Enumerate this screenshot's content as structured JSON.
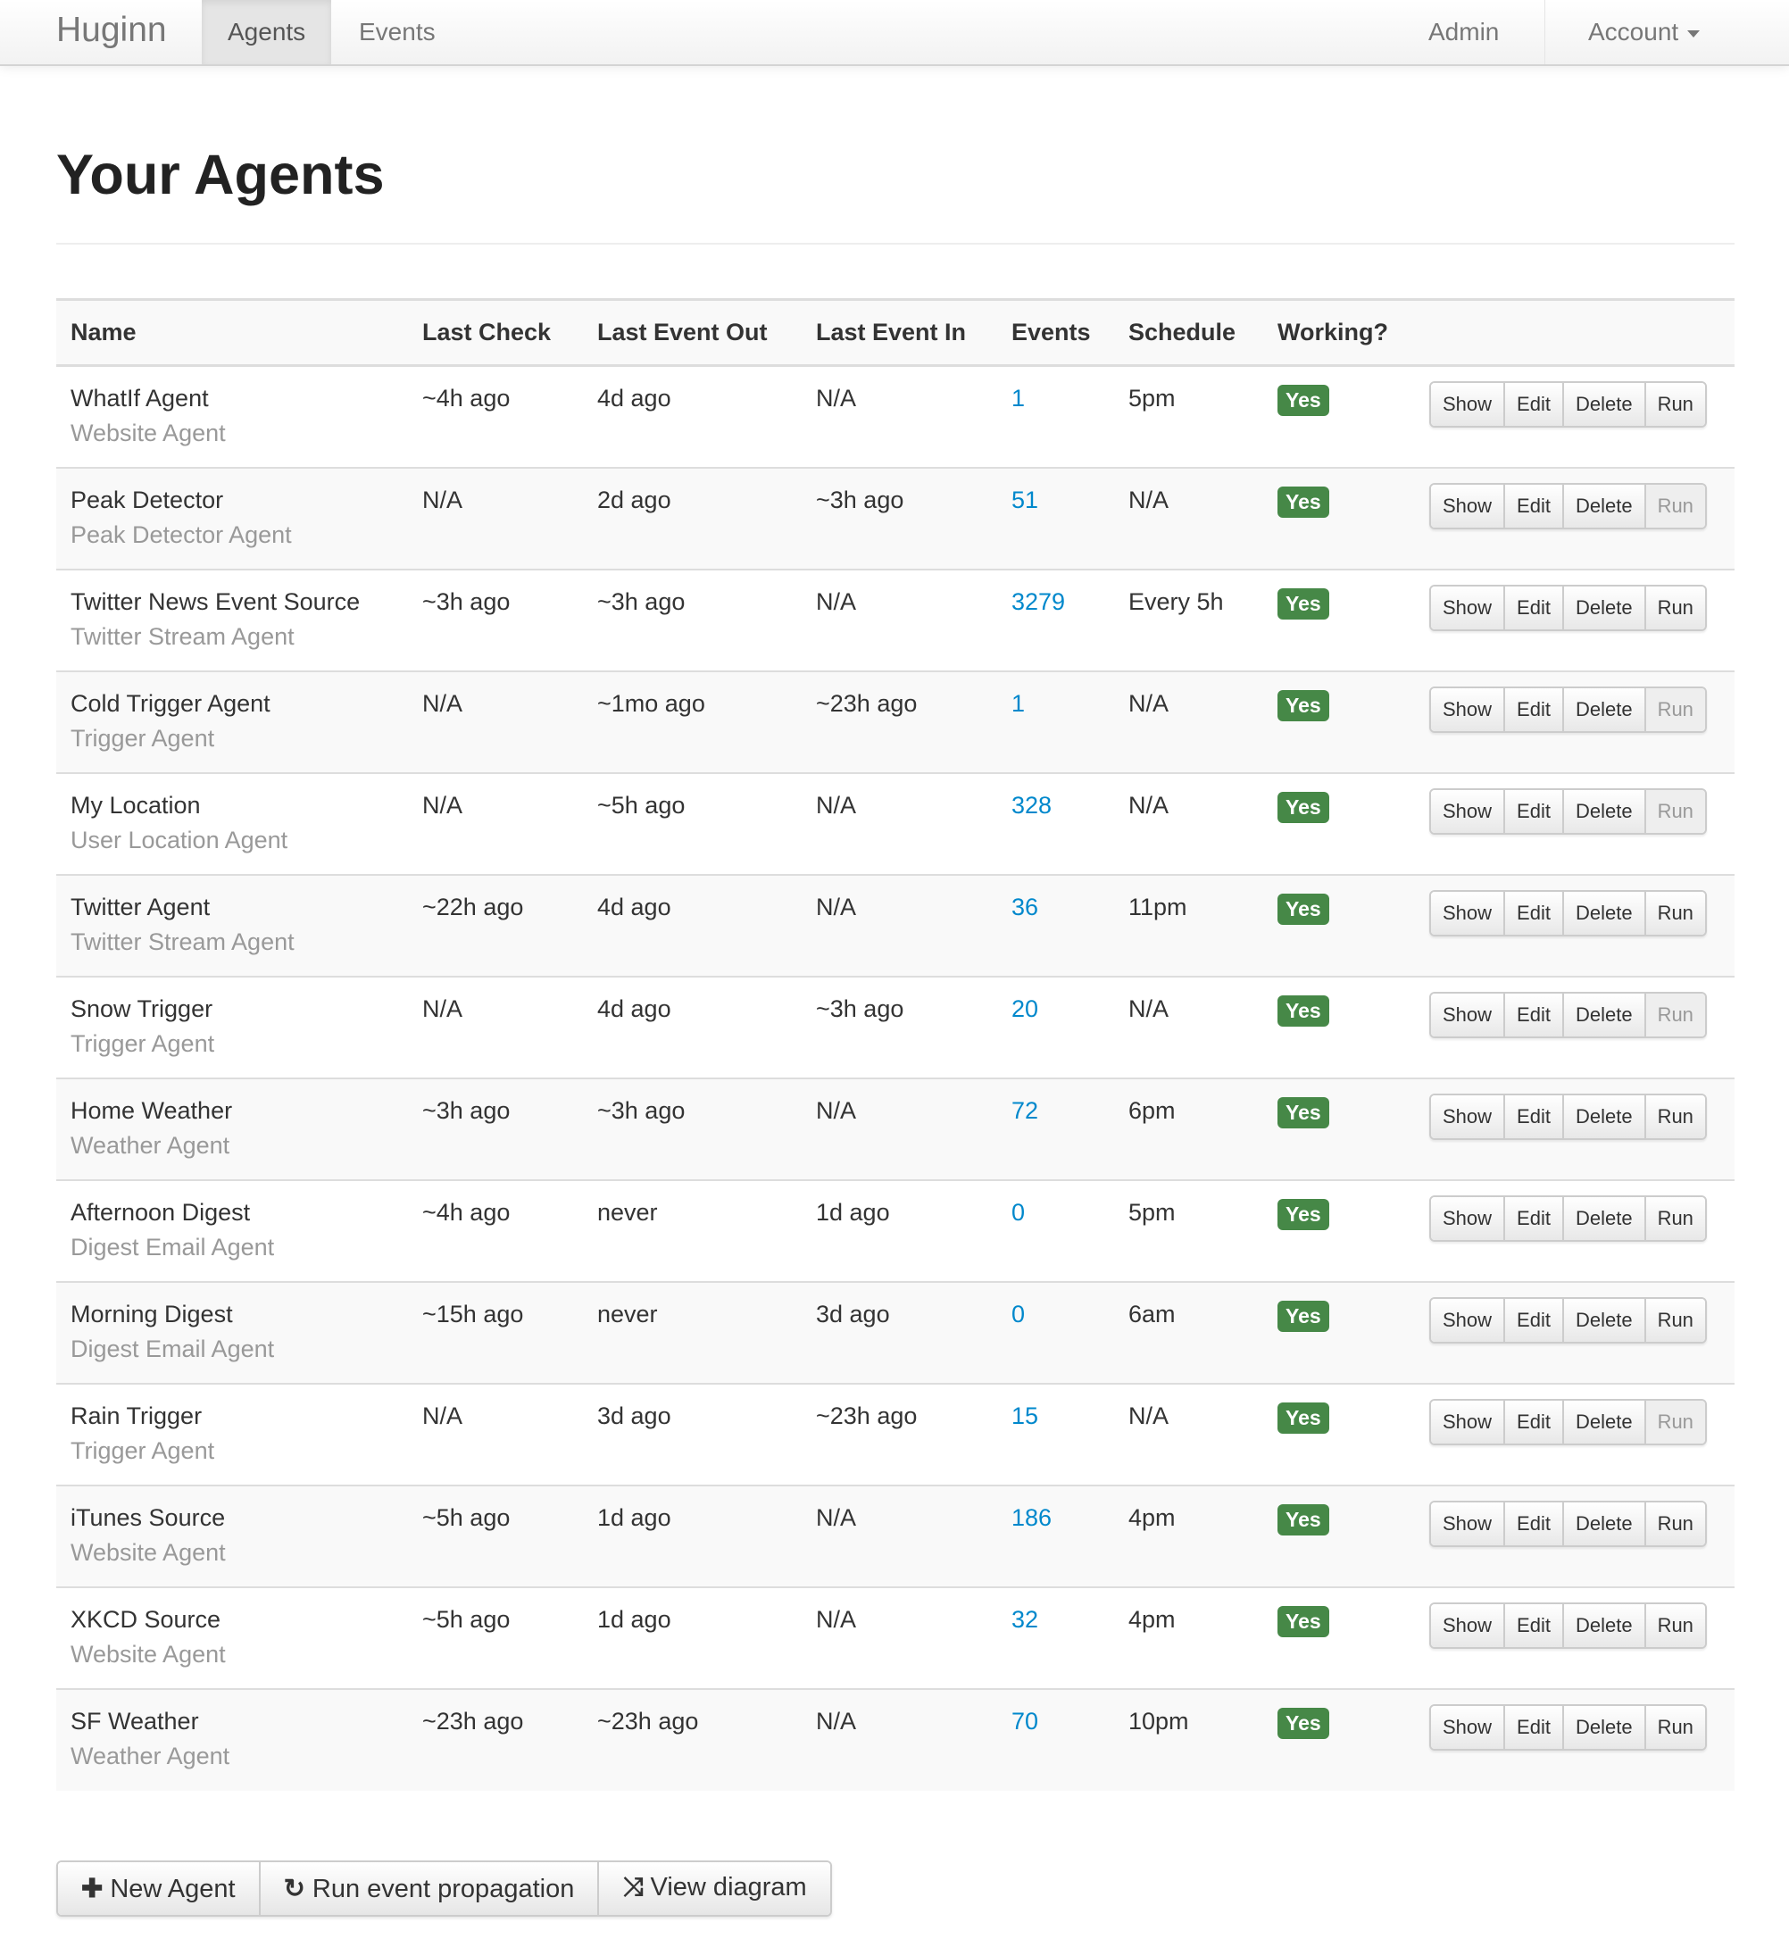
{
  "nav": {
    "brand": "Huginn",
    "agents": "Agents",
    "events": "Events",
    "admin": "Admin",
    "account": "Account"
  },
  "page_title": "Your Agents",
  "columns": [
    "Name",
    "Last Check",
    "Last Event Out",
    "Last Event In",
    "Events",
    "Schedule",
    "Working?"
  ],
  "actions": {
    "show": "Show",
    "edit": "Edit",
    "delete": "Delete",
    "run": "Run"
  },
  "rows": [
    {
      "name": "WhatIf Agent",
      "type": "Website Agent",
      "last_check": "~4h ago",
      "last_out": "4d ago",
      "last_in": "N/A",
      "events": "1",
      "schedule": "5pm",
      "working": "Yes",
      "run_enabled": true
    },
    {
      "name": "Peak Detector",
      "type": "Peak Detector Agent",
      "last_check": "N/A",
      "last_out": "2d ago",
      "last_in": "~3h ago",
      "events": "51",
      "schedule": "N/A",
      "working": "Yes",
      "run_enabled": false
    },
    {
      "name": "Twitter News Event Source",
      "type": "Twitter Stream Agent",
      "last_check": "~3h ago",
      "last_out": "~3h ago",
      "last_in": "N/A",
      "events": "3279",
      "schedule": "Every 5h",
      "working": "Yes",
      "run_enabled": true
    },
    {
      "name": "Cold Trigger Agent",
      "type": "Trigger Agent",
      "last_check": "N/A",
      "last_out": "~1mo ago",
      "last_in": "~23h ago",
      "events": "1",
      "schedule": "N/A",
      "working": "Yes",
      "run_enabled": false
    },
    {
      "name": "My Location",
      "type": "User Location Agent",
      "last_check": "N/A",
      "last_out": "~5h ago",
      "last_in": "N/A",
      "events": "328",
      "schedule": "N/A",
      "working": "Yes",
      "run_enabled": false
    },
    {
      "name": "Twitter Agent",
      "type": "Twitter Stream Agent",
      "last_check": "~22h ago",
      "last_out": "4d ago",
      "last_in": "N/A",
      "events": "36",
      "schedule": "11pm",
      "working": "Yes",
      "run_enabled": true
    },
    {
      "name": "Snow Trigger",
      "type": "Trigger Agent",
      "last_check": "N/A",
      "last_out": "4d ago",
      "last_in": "~3h ago",
      "events": "20",
      "schedule": "N/A",
      "working": "Yes",
      "run_enabled": false
    },
    {
      "name": "Home Weather",
      "type": "Weather Agent",
      "last_check": "~3h ago",
      "last_out": "~3h ago",
      "last_in": "N/A",
      "events": "72",
      "schedule": "6pm",
      "working": "Yes",
      "run_enabled": true
    },
    {
      "name": "Afternoon Digest",
      "type": "Digest Email Agent",
      "last_check": "~4h ago",
      "last_out": "never",
      "last_in": "1d ago",
      "events": "0",
      "schedule": "5pm",
      "working": "Yes",
      "run_enabled": true
    },
    {
      "name": "Morning Digest",
      "type": "Digest Email Agent",
      "last_check": "~15h ago",
      "last_out": "never",
      "last_in": "3d ago",
      "events": "0",
      "schedule": "6am",
      "working": "Yes",
      "run_enabled": true
    },
    {
      "name": "Rain Trigger",
      "type": "Trigger Agent",
      "last_check": "N/A",
      "last_out": "3d ago",
      "last_in": "~23h ago",
      "events": "15",
      "schedule": "N/A",
      "working": "Yes",
      "run_enabled": false
    },
    {
      "name": "iTunes Source",
      "type": "Website Agent",
      "last_check": "~5h ago",
      "last_out": "1d ago",
      "last_in": "N/A",
      "events": "186",
      "schedule": "4pm",
      "working": "Yes",
      "run_enabled": true
    },
    {
      "name": "XKCD Source",
      "type": "Website Agent",
      "last_check": "~5h ago",
      "last_out": "1d ago",
      "last_in": "N/A",
      "events": "32",
      "schedule": "4pm",
      "working": "Yes",
      "run_enabled": true
    },
    {
      "name": "SF Weather",
      "type": "Weather Agent",
      "last_check": "~23h ago",
      "last_out": "~23h ago",
      "last_in": "N/A",
      "events": "70",
      "schedule": "10pm",
      "working": "Yes",
      "run_enabled": true
    }
  ],
  "footer": {
    "new_agent": "New Agent",
    "run_propagation": "Run event propagation",
    "view_diagram": "View diagram"
  },
  "icons": {
    "new_agent": "plus-icon",
    "run_propagation": "refresh-icon",
    "view_diagram": "shuffle-icon"
  },
  "colors": {
    "working_badge": "#468847",
    "link": "#0088cc"
  }
}
